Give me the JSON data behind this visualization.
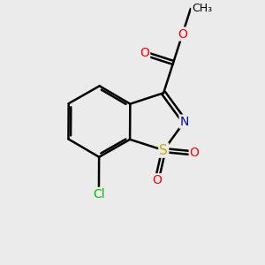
{
  "bg_color": "#ebebeb",
  "bond_color": "#000000",
  "bond_width": 1.8,
  "atom_colors": {
    "O": "#ff0000",
    "N": "#0000cc",
    "S": "#ccaa00",
    "Cl": "#00bb00",
    "C": "#000000"
  },
  "font_size": 10,
  "fig_size": [
    3.0,
    3.0
  ],
  "dpi": 100
}
